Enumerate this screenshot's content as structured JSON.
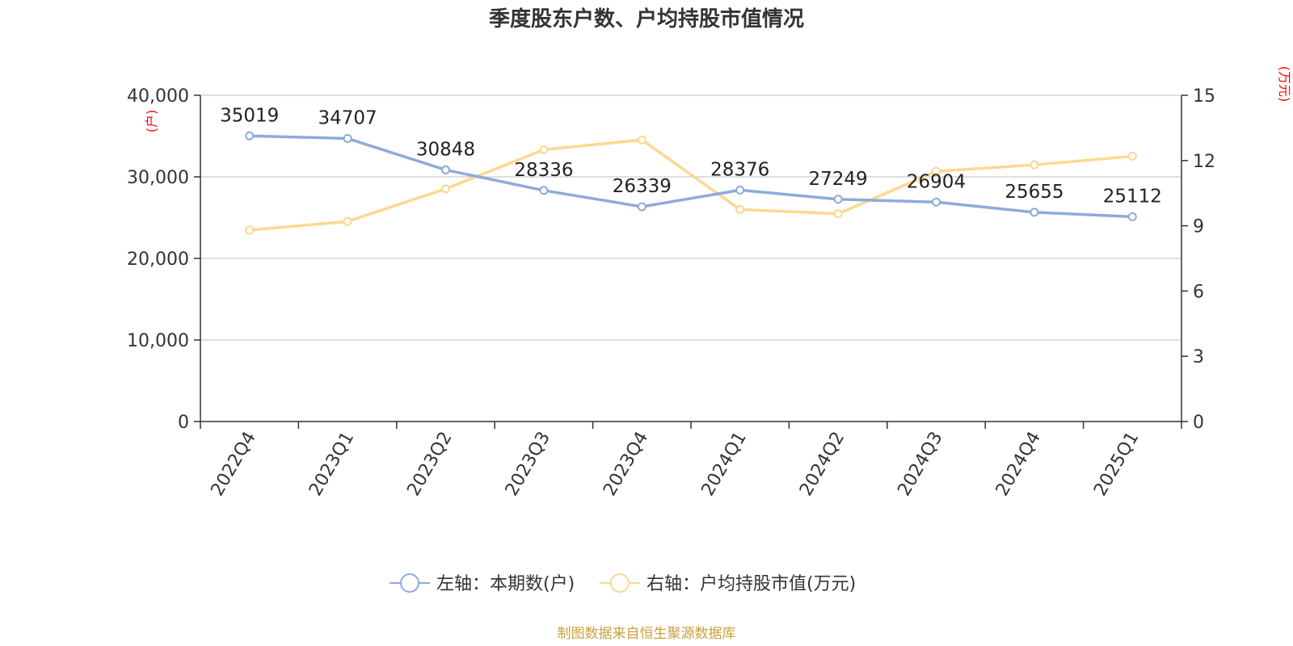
{
  "chart_data": {
    "type": "line",
    "title": "季度股东户数、户均持股市值情况",
    "categories": [
      "2022Q4",
      "2023Q1",
      "2023Q2",
      "2023Q3",
      "2023Q4",
      "2024Q1",
      "2024Q2",
      "2024Q3",
      "2024Q4",
      "2025Q1"
    ],
    "left_axis": {
      "unit": "(户)",
      "ylim": [
        0,
        40000
      ],
      "ticks": [
        0,
        10000,
        20000,
        30000,
        40000
      ],
      "tick_labels": [
        "0",
        "10,000",
        "20,000",
        "30,000",
        "40,000"
      ]
    },
    "right_axis": {
      "unit": "(万元)",
      "ylim": [
        0,
        15
      ],
      "ticks": [
        0,
        3,
        6,
        9,
        12,
        15
      ],
      "tick_labels": [
        "0",
        "3",
        "6",
        "9",
        "12",
        "15"
      ]
    },
    "series": [
      {
        "name": "左轴：本期数(户)",
        "axis": "left",
        "color": "#8eaadb",
        "values": [
          35019,
          34707,
          30848,
          28336,
          26339,
          28376,
          27249,
          26904,
          25655,
          25112
        ],
        "data_labels": [
          "35019",
          "34707",
          "30848",
          "28336",
          "26339",
          "28376",
          "27249",
          "26904",
          "25655",
          "25112"
        ]
      },
      {
        "name": "右轴：户均持股市值(万元)",
        "axis": "right",
        "color": "#fcd890",
        "values": [
          8.8,
          9.2,
          10.7,
          12.5,
          12.95,
          9.75,
          9.55,
          11.5,
          11.8,
          12.2
        ]
      }
    ],
    "grid": true,
    "legend_position": "bottom",
    "unit_color": "#ff0000"
  },
  "footer": {
    "source": "制图数据来自恒生聚源数据库",
    "source_color": "#c8a040"
  }
}
